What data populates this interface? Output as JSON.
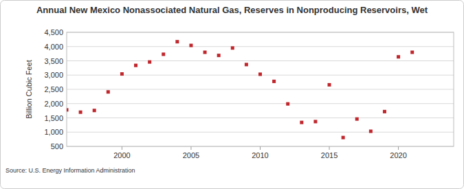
{
  "chart_data": {
    "type": "scatter",
    "title": "Annual New Mexico Nonassociated Natural Gas, Reserves in Nonproducing Reservoirs, Wet",
    "y_label": "Billion Cubic Feet",
    "source": "Source: U.S. Energy Information Administration",
    "x": [
      1996,
      1997,
      1998,
      1999,
      2000,
      2001,
      2002,
      2003,
      2004,
      2005,
      2006,
      2007,
      2008,
      2009,
      2010,
      2011,
      2012,
      2013,
      2014,
      2015,
      2016,
      2017,
      2018,
      2019,
      2020,
      2021
    ],
    "values": [
      1780,
      1700,
      1760,
      2410,
      3040,
      3340,
      3460,
      3730,
      4170,
      4040,
      3800,
      3690,
      3950,
      3370,
      3030,
      2780,
      1990,
      1340,
      1370,
      2660,
      810,
      1460,
      1030,
      1720,
      3640,
      3800
    ],
    "color": "#c0272d",
    "marker": "square",
    "xlim": [
      1996,
      2024
    ],
    "xticks": [
      2000,
      2005,
      2010,
      2015,
      2020
    ],
    "ylim": [
      500,
      4500
    ],
    "yticks": [
      500,
      {
        "value": 1000,
        "label": "1,000"
      },
      {
        "value": 1500,
        "label": "1,500"
      },
      {
        "value": 2000,
        "label": "2,000"
      },
      {
        "value": 2500,
        "label": "2,500"
      },
      {
        "value": 3000,
        "label": "3,000"
      },
      {
        "value": 3500,
        "label": "3,500"
      },
      {
        "value": 4000,
        "label": "4,000"
      },
      {
        "value": 4500,
        "label": "4,500"
      }
    ],
    "grid": true
  }
}
